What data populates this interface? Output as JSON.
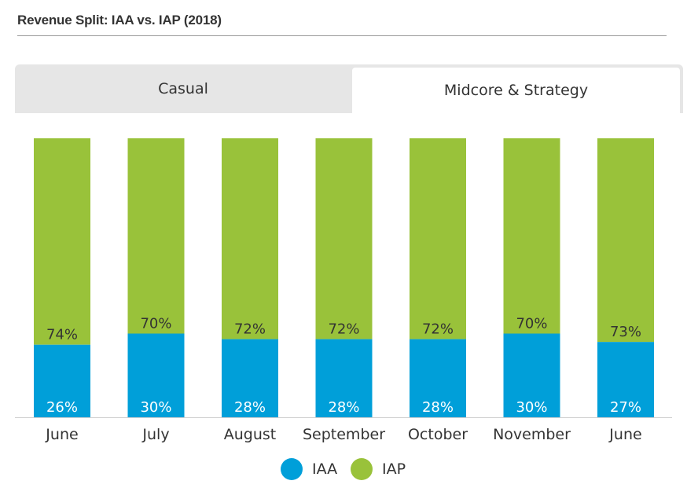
{
  "header": {
    "title": "Revenue Split: IAA vs. IAP (2018)"
  },
  "tabs": [
    {
      "label": "Casual",
      "selected": false
    },
    {
      "label": "Midcore & Strategy",
      "selected": true
    }
  ],
  "colors": {
    "IAA": "#009fd9",
    "IAP": "#99c23a"
  },
  "chart_data": {
    "type": "bar",
    "stacked": true,
    "categories": [
      "June",
      "July",
      "August",
      "September",
      "October",
      "November",
      "June"
    ],
    "series": [
      {
        "name": "IAA",
        "values": [
          26,
          30,
          28,
          28,
          28,
          30,
          27
        ],
        "labels": [
          "26%",
          "30%",
          "28%",
          "28%",
          "28%",
          "30%",
          "27%"
        ]
      },
      {
        "name": "IAP",
        "values": [
          74,
          70,
          72,
          72,
          72,
          70,
          73
        ],
        "labels": [
          "74%",
          "70%",
          "72%",
          "72%",
          "72%",
          "70%",
          "73%"
        ]
      }
    ],
    "ylim": [
      0,
      100
    ],
    "grid": false,
    "legend": "bottom"
  },
  "legend": [
    {
      "label": "IAA",
      "icon": "circle-icon"
    },
    {
      "label": "IAP",
      "icon": "circle-icon"
    }
  ]
}
